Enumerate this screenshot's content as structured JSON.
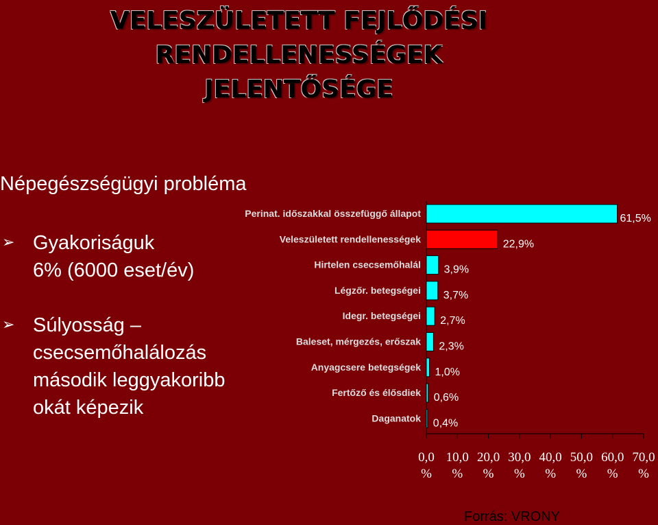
{
  "slide": {
    "title_lines": [
      "VELESZÜLETETT FEJLŐDÉSI",
      "RENDELLENESSÉGEK",
      "JELENTŐSÉGE"
    ],
    "subtitle": "Népegészségügyi probléma",
    "bullets": [
      {
        "icon": "arrow-bullet-icon",
        "glyph": "➢",
        "lines": [
          "Gyakoriságuk",
          "6% (6000 eset/év)"
        ]
      },
      {
        "icon": "arrow-bullet-icon",
        "glyph": "➢",
        "lines": [
          "Súlyosság –",
          "csecsemőhalálozás",
          "második leggyakoribb",
          "okát képezik"
        ]
      }
    ],
    "source": "Forrás: VRONY"
  },
  "chart_data": {
    "type": "bar",
    "orientation": "horizontal",
    "categories": [
      "Perinat. időszakkal összefüggő állapot",
      "Veleszületett rendellenességek",
      "Hirtelen csecsemőhalál",
      "Légzőr. betegségei",
      "Idegr. betegségei",
      "Baleset, mérgezés, erőszak",
      "Anyagcsere betegségek",
      "Fertőző és élősdiek",
      "Daganatok"
    ],
    "values": [
      61.5,
      22.9,
      3.9,
      3.7,
      2.7,
      2.3,
      1.0,
      0.6,
      0.4
    ],
    "value_labels": [
      "61,5%",
      "22,9%",
      "3,9%",
      "3,7%",
      "2,7%",
      "2,3%",
      "1,0%",
      "0,6%",
      "0,4%"
    ],
    "colors": [
      "#00ffff",
      "#ff0000",
      "#00ffff",
      "#00ffff",
      "#00ffff",
      "#00ffff",
      "#00ffff",
      "#00ffff",
      "#00ffff"
    ],
    "highlight_color": "#ff0000",
    "xlim": [
      0,
      70
    ],
    "xticks": [
      0,
      10,
      20,
      30,
      40,
      50,
      60,
      70
    ],
    "xtick_labels": [
      [
        "0,0",
        "%"
      ],
      [
        "10,0",
        "%"
      ],
      [
        "20,0",
        "%"
      ],
      [
        "30,0",
        "%"
      ],
      [
        "40,0",
        "%"
      ],
      [
        "50,0",
        "%"
      ],
      [
        "60,0",
        "%"
      ],
      [
        "70,0",
        "%"
      ]
    ],
    "grid": false,
    "legend": "none"
  }
}
